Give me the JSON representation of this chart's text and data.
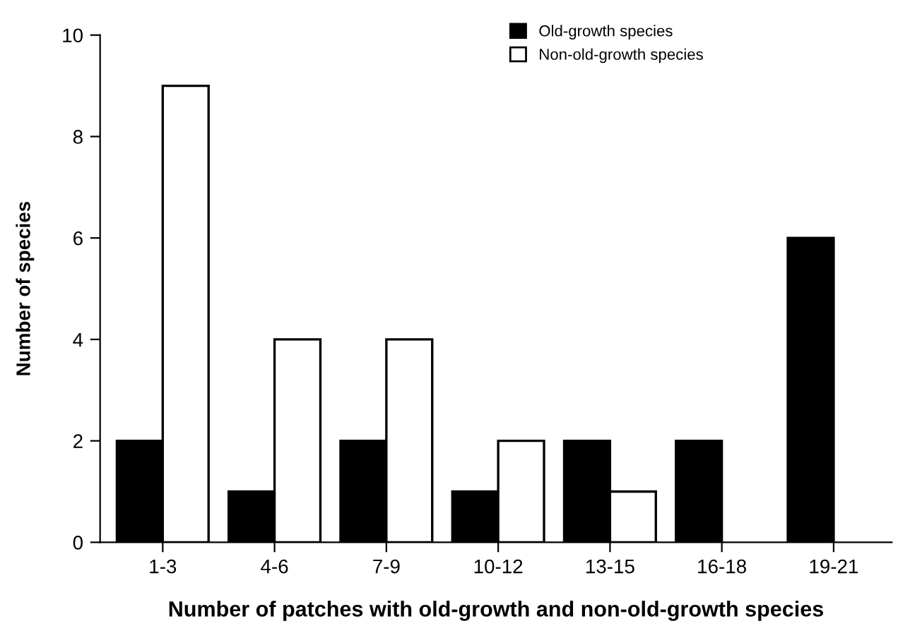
{
  "chart_data": {
    "type": "bar",
    "xlabel": "Number of patches with old-growth and non-old-growth species",
    "ylabel": "Number of species",
    "categories": [
      "1-3",
      "4-6",
      "7-9",
      "10-12",
      "13-15",
      "16-18",
      "19-21"
    ],
    "series": [
      {
        "name": "Old-growth species",
        "color": "#000000",
        "values": [
          2,
          1,
          2,
          1,
          2,
          2,
          6
        ]
      },
      {
        "name": "Non-old-growth species",
        "color": "#ffffff",
        "values": [
          9,
          4,
          4,
          2,
          1,
          null,
          null
        ]
      }
    ],
    "ylim": [
      0,
      10
    ],
    "yticks": [
      0,
      2,
      4,
      6,
      8,
      10
    ],
    "grid": false,
    "legend": "top right"
  }
}
